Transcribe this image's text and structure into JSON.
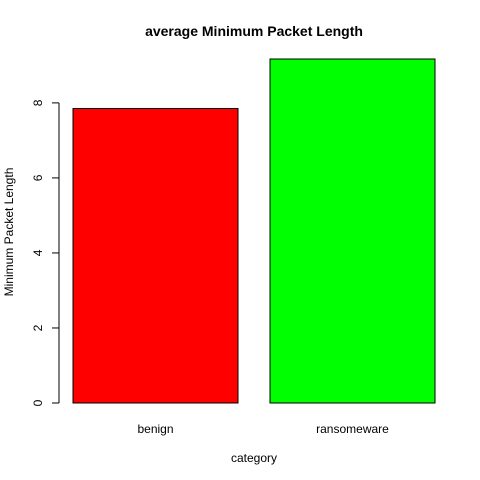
{
  "chart_data": {
    "type": "bar",
    "title": "average Minimum Packet Length",
    "xlabel": "category",
    "ylabel": "Minimum Packet Length",
    "categories": [
      "benign",
      "ransomeware"
    ],
    "values": [
      7.85,
      9.17
    ],
    "colors": [
      "#ff0000",
      "#00ff00"
    ],
    "ylim": [
      0,
      9.17
    ],
    "yticks": [
      0,
      2,
      4,
      6,
      8
    ],
    "grid": false,
    "legend": "none"
  }
}
